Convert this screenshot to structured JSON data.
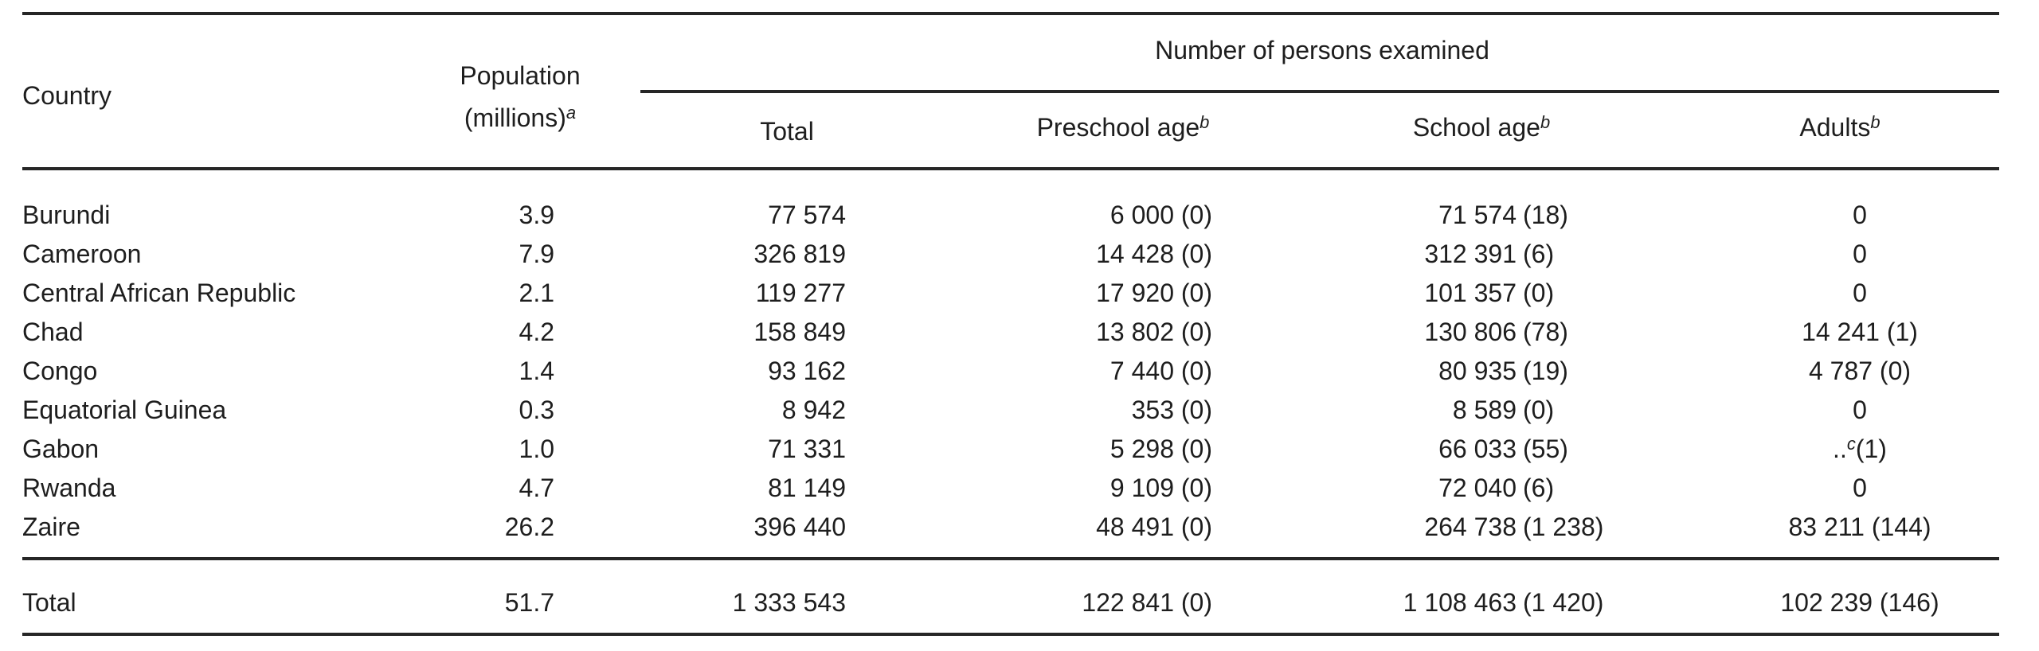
{
  "header": {
    "country": "Country",
    "population_line1": "Population",
    "population_line2": "(millions)",
    "population_sup": "a",
    "group": "Number of persons examined",
    "total": "Total",
    "preschool": "Preschool age",
    "preschool_sup": "b",
    "school": "School age",
    "school_sup": "b",
    "adults": "Adults",
    "adults_sup": "b"
  },
  "rows": [
    {
      "country": "Burundi",
      "population": "3.9",
      "total": "77 574",
      "preschool": "6 000 (0)",
      "school_n": "71 574",
      "school_p": "(18)",
      "adults": "0",
      "adults_sup": "",
      "adults_post": ""
    },
    {
      "country": "Cameroon",
      "population": "7.9",
      "total": "326 819",
      "preschool": "14 428 (0)",
      "school_n": "312 391",
      "school_p": "(6)",
      "adults": "0",
      "adults_sup": "",
      "adults_post": ""
    },
    {
      "country": "Central African Republic",
      "population": "2.1",
      "total": "119 277",
      "preschool": "17 920 (0)",
      "school_n": "101 357",
      "school_p": "(0)",
      "adults": "0",
      "adults_sup": "",
      "adults_post": ""
    },
    {
      "country": "Chad",
      "population": "4.2",
      "total": "158 849",
      "preschool": "13 802 (0)",
      "school_n": "130 806",
      "school_p": "(78)",
      "adults": "14 241 (1)",
      "adults_sup": "",
      "adults_post": ""
    },
    {
      "country": "Congo",
      "population": "1.4",
      "total": "93 162",
      "preschool": "7 440 (0)",
      "school_n": "80 935",
      "school_p": "(19)",
      "adults": "4 787 (0)",
      "adults_sup": "",
      "adults_post": ""
    },
    {
      "country": "Equatorial Guinea",
      "population": "0.3",
      "total": "8 942",
      "preschool": "353 (0)",
      "school_n": "8 589",
      "school_p": "(0)",
      "adults": "0",
      "adults_sup": "",
      "adults_post": ""
    },
    {
      "country": "Gabon",
      "population": "1.0",
      "total": "71 331",
      "preschool": "5 298 (0)",
      "school_n": "66 033",
      "school_p": "(55)",
      "adults": "..",
      "adults_sup": "c",
      "adults_post": "(1)"
    },
    {
      "country": "Rwanda",
      "population": "4.7",
      "total": "81 149",
      "preschool": "9 109 (0)",
      "school_n": "72 040",
      "school_p": "(6)",
      "adults": "0",
      "adults_sup": "",
      "adults_post": ""
    },
    {
      "country": "Zaire",
      "population": "26.2",
      "total": "396 440",
      "preschool": "48 491 (0)",
      "school_n": "264 738",
      "school_p": "(1 238)",
      "adults": "83 211 (144)",
      "adults_sup": "",
      "adults_post": ""
    }
  ],
  "totals": {
    "country": "Total",
    "population": "51.7",
    "total": "1 333 543",
    "preschool": "122 841 (0)",
    "school_n": "1 108 463",
    "school_p": "(1 420)",
    "adults": "102 239 (146)"
  }
}
